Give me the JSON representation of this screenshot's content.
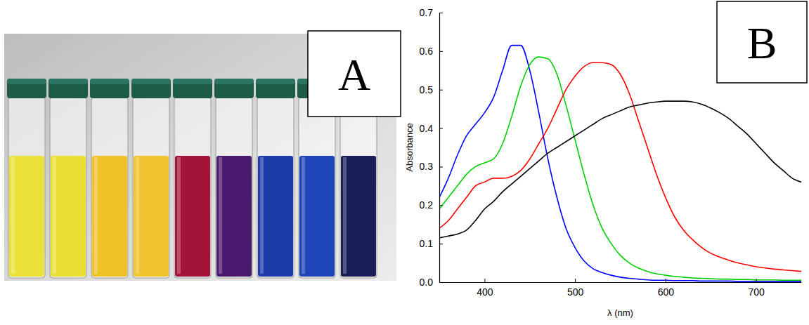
{
  "photo": {
    "label": "A",
    "vial_colors": [
      "#e8e23a",
      "#e9df35",
      "#f0c22a",
      "#f1c52e",
      "#a3143a",
      "#4a1a6e",
      "#1c3aa8",
      "#1e45b8",
      "#1a1f5a"
    ]
  },
  "chart_data": {
    "type": "line",
    "annotations": [
      "B"
    ],
    "x_label": "λ (nm)",
    "y_label": "Absorbance",
    "xlim": [
      350,
      750
    ],
    "xticks": [
      400,
      500,
      600,
      700
    ],
    "ylim": [
      0,
      0.7
    ],
    "yticks": [
      {
        "value": 0,
        "label": "0.0"
      },
      0.1,
      0.2,
      0.3,
      0.4,
      0.5,
      0.6,
      0.7
    ],
    "x": [
      350,
      360,
      370,
      380,
      390,
      400,
      410,
      420,
      430,
      440,
      450,
      460,
      470,
      480,
      490,
      500,
      510,
      520,
      530,
      540,
      550,
      560,
      570,
      580,
      590,
      600,
      610,
      620,
      630,
      640,
      650,
      660,
      670,
      680,
      690,
      700,
      710,
      720,
      730,
      740,
      750
    ],
    "series": [
      {
        "color": "#0000ff",
        "values": [
          0.22,
          0.27,
          0.33,
          0.38,
          0.41,
          0.44,
          0.48,
          0.55,
          0.615,
          0.615,
          0.55,
          0.44,
          0.32,
          0.22,
          0.14,
          0.09,
          0.055,
          0.035,
          0.025,
          0.018,
          0.013,
          0.01,
          0.008,
          0.006,
          0.005,
          0.005,
          0.004,
          0.004,
          0.004,
          0.003,
          0.003,
          0.003,
          0.003,
          0.002,
          0.002,
          0.002,
          0.002,
          0.002,
          0.002,
          0.002,
          0.002
        ]
      },
      {
        "color": "#00d000",
        "values": [
          0.19,
          0.22,
          0.25,
          0.28,
          0.3,
          0.31,
          0.32,
          0.36,
          0.43,
          0.51,
          0.565,
          0.585,
          0.58,
          0.54,
          0.46,
          0.37,
          0.28,
          0.2,
          0.14,
          0.1,
          0.07,
          0.05,
          0.037,
          0.028,
          0.022,
          0.018,
          0.015,
          0.013,
          0.011,
          0.01,
          0.009,
          0.008,
          0.008,
          0.007,
          0.007,
          0.006,
          0.006,
          0.006,
          0.005,
          0.005,
          0.005
        ]
      },
      {
        "color": "#ff0000",
        "values": [
          0.14,
          0.16,
          0.19,
          0.22,
          0.25,
          0.26,
          0.27,
          0.27,
          0.275,
          0.29,
          0.32,
          0.36,
          0.4,
          0.45,
          0.5,
          0.535,
          0.56,
          0.57,
          0.57,
          0.565,
          0.54,
          0.49,
          0.42,
          0.35,
          0.28,
          0.22,
          0.17,
          0.135,
          0.11,
          0.09,
          0.075,
          0.065,
          0.057,
          0.05,
          0.045,
          0.04,
          0.037,
          0.034,
          0.032,
          0.03,
          0.028
        ]
      },
      {
        "color": "#000000",
        "values": [
          0.115,
          0.12,
          0.125,
          0.135,
          0.16,
          0.19,
          0.21,
          0.235,
          0.255,
          0.275,
          0.295,
          0.315,
          0.335,
          0.35,
          0.365,
          0.38,
          0.395,
          0.41,
          0.425,
          0.435,
          0.445,
          0.455,
          0.46,
          0.465,
          0.468,
          0.47,
          0.47,
          0.47,
          0.468,
          0.462,
          0.452,
          0.44,
          0.425,
          0.405,
          0.385,
          0.36,
          0.335,
          0.31,
          0.29,
          0.27,
          0.26
        ]
      }
    ]
  }
}
